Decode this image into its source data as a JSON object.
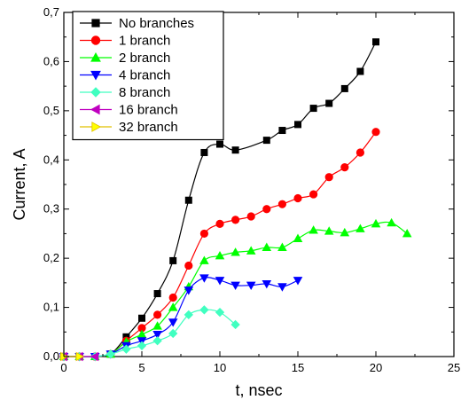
{
  "chart_data": {
    "type": "line",
    "title": "",
    "xlabel": "t, nsec",
    "ylabel": "Current, A",
    "xlim": [
      0,
      25
    ],
    "ylim": [
      0,
      0.7
    ],
    "x_ticks": [
      "0",
      "5",
      "10",
      "15",
      "20",
      "25"
    ],
    "y_ticks": [
      "0,0",
      "0,1",
      "0,2",
      "0,3",
      "0,4",
      "0,5",
      "0,6",
      "0,7"
    ],
    "grid": false,
    "legend_position": "top-left",
    "series": [
      {
        "name": "No branches",
        "color": "#000000",
        "marker": "square",
        "x": [
          0,
          1,
          2,
          3,
          4,
          5,
          6,
          7,
          8,
          9,
          10,
          11,
          13,
          14,
          15,
          16,
          17,
          18,
          19,
          20
        ],
        "y": [
          0,
          0,
          0,
          0.005,
          0.04,
          0.078,
          0.128,
          0.195,
          0.318,
          0.415,
          0.432,
          0.42,
          0.44,
          0.46,
          0.472,
          0.505,
          0.515,
          0.545,
          0.58,
          0.64
        ]
      },
      {
        "name": "1 branch",
        "color": "#ff0000",
        "marker": "circle",
        "x": [
          0,
          1,
          2,
          3,
          4,
          5,
          6,
          7,
          8,
          9,
          10,
          11,
          12,
          13,
          14,
          15,
          16,
          17,
          18,
          19,
          20
        ],
        "y": [
          0,
          0,
          0,
          0.005,
          0.032,
          0.058,
          0.085,
          0.12,
          0.185,
          0.25,
          0.27,
          0.278,
          0.285,
          0.3,
          0.31,
          0.322,
          0.33,
          0.365,
          0.385,
          0.415,
          0.457
        ]
      },
      {
        "name": "2 branch",
        "color": "#00ff00",
        "marker": "triangle-up",
        "x": [
          0,
          1,
          2,
          3,
          4,
          5,
          6,
          7,
          8,
          9,
          10,
          11,
          12,
          13,
          14,
          15,
          16,
          17,
          18,
          19,
          20,
          21,
          22
        ],
        "y": [
          0,
          0,
          0,
          0.005,
          0.03,
          0.045,
          0.062,
          0.1,
          0.142,
          0.195,
          0.205,
          0.212,
          0.215,
          0.222,
          0.222,
          0.24,
          0.257,
          0.255,
          0.252,
          0.26,
          0.27,
          0.272,
          0.25
        ]
      },
      {
        "name": "4 branch",
        "color": "#0000ff",
        "marker": "triangle-down",
        "x": [
          0,
          1,
          2,
          3,
          4,
          5,
          6,
          7,
          8,
          9,
          10,
          11,
          12,
          13,
          14,
          15
        ],
        "y": [
          0,
          0,
          0,
          0.005,
          0.022,
          0.032,
          0.045,
          0.07,
          0.135,
          0.16,
          0.155,
          0.145,
          0.145,
          0.148,
          0.142,
          0.155
        ]
      },
      {
        "name": "8 branch",
        "color": "#40ffc0",
        "marker": "diamond",
        "x": [
          0,
          1,
          2,
          3,
          4,
          5,
          6,
          7,
          8,
          9,
          10,
          11
        ],
        "y": [
          0,
          0,
          0,
          0.005,
          0.015,
          0.022,
          0.032,
          0.047,
          0.085,
          0.095,
          0.09,
          0.065
        ]
      },
      {
        "name": "16 branch",
        "color": "#c000c0",
        "marker": "triangle-left",
        "x": [
          0,
          1,
          2
        ],
        "y": [
          0,
          0,
          0
        ]
      },
      {
        "name": "32 branch",
        "color": "#ffff00",
        "marker": "triangle-right",
        "x": [
          0,
          1
        ],
        "y": [
          0,
          0
        ]
      }
    ]
  }
}
